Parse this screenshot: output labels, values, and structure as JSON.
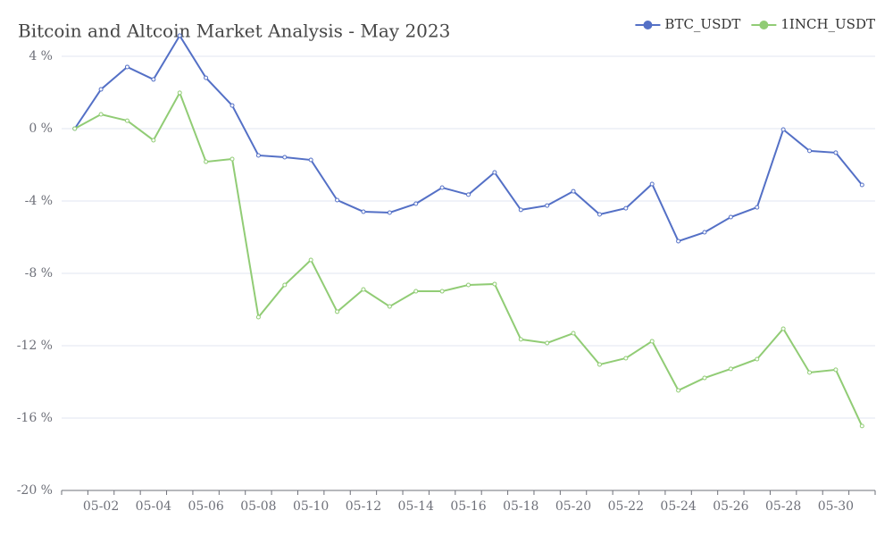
{
  "chart_data": {
    "type": "line",
    "title": "Bitcoin and Altcoin Market Analysis - May 2023",
    "categories": [
      null,
      "05-02",
      null,
      "05-04",
      null,
      "05-06",
      null,
      "05-08",
      null,
      "05-10",
      null,
      "05-12",
      null,
      "05-14",
      null,
      "05-16",
      null,
      "05-18",
      null,
      "05-20",
      null,
      "05-22",
      null,
      "05-24",
      null,
      "05-26",
      null,
      "05-28",
      null,
      "05-30",
      null
    ],
    "series": [
      {
        "name": "BTC_USDT",
        "color": "#5470c6",
        "values": [
          0,
          2.17,
          3.41,
          2.72,
          5.14,
          2.81,
          1.28,
          -1.48,
          -1.58,
          -1.73,
          -3.95,
          -4.59,
          -4.64,
          -4.15,
          -3.26,
          -3.65,
          -2.42,
          -4.49,
          -4.25,
          -3.46,
          -4.74,
          -4.4,
          -3.06,
          -6.22,
          -5.73,
          -4.89,
          -4.35,
          -0.05,
          -1.23,
          -1.33,
          -3.11
        ]
      },
      {
        "name": "1INCH_USDT",
        "color": "#91cc75",
        "values": [
          0,
          0.79,
          0.44,
          -0.64,
          1.98,
          -1.83,
          -1.68,
          -10.42,
          -8.64,
          -7.26,
          -10.12,
          -8.89,
          -9.83,
          -8.99,
          -8.99,
          -8.64,
          -8.59,
          -11.65,
          -11.85,
          -11.31,
          -13.04,
          -12.69,
          -11.75,
          -14.47,
          -13.78,
          -13.28,
          -12.74,
          -11.06,
          -13.48,
          -13.33,
          -16.44
        ]
      }
    ],
    "ylim": [
      -20,
      5.2
    ],
    "yticks": [
      {
        "value": -20,
        "label": "-20 %"
      },
      {
        "value": -16,
        "label": "-16 %"
      },
      {
        "value": -12,
        "label": "-12 %"
      },
      {
        "value": -8,
        "label": "-8 %"
      },
      {
        "value": -4,
        "label": "-4 %"
      },
      {
        "value": 0,
        "label": "0 %"
      },
      {
        "value": 4,
        "label": "4 %"
      }
    ],
    "grid": true,
    "legend": "top-right"
  }
}
